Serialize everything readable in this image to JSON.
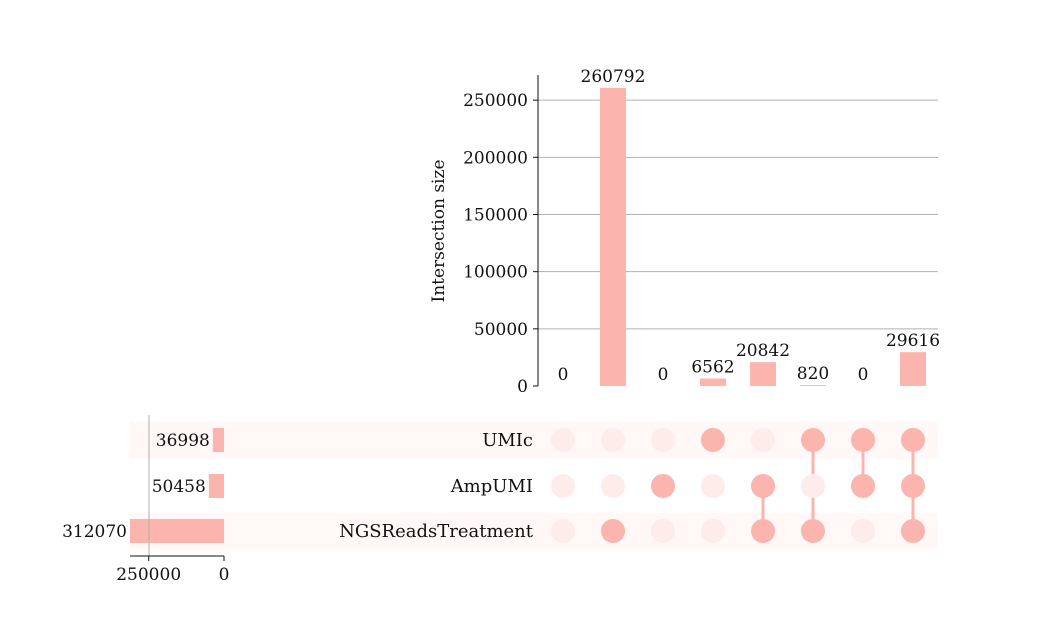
{
  "chart_data": {
    "type": "upset",
    "bar_color": "#fbb4ae",
    "dot_inactive_color": "#fdecea",
    "row_stripe_color": "#fff8f7",
    "grid_color": "#b0b0b0",
    "ylabel": "Intersection size",
    "ylim": [
      0,
      272000
    ],
    "yticks": [
      "0",
      "50000",
      "100000",
      "150000",
      "200000",
      "250000"
    ],
    "ytick_values": [
      0,
      50000,
      100000,
      150000,
      200000,
      250000
    ],
    "sets": [
      {
        "name": "UMIc",
        "size": 36998,
        "size_label": "36998"
      },
      {
        "name": "AmpUMI",
        "size": 50458,
        "size_label": "50458"
      },
      {
        "name": "NGSReadsTreatment",
        "size": 312070,
        "size_label": "312070"
      }
    ],
    "set_size_xlim": [
      0,
      312070
    ],
    "set_size_xticks": [
      "250000",
      "0"
    ],
    "set_size_xtick_values": [
      250000,
      0
    ],
    "intersections": [
      {
        "value": 0,
        "label": "0",
        "members": []
      },
      {
        "value": 260792,
        "label": "260792",
        "members": [
          "NGSReadsTreatment"
        ]
      },
      {
        "value": 0,
        "label": "0",
        "members": [
          "AmpUMI"
        ]
      },
      {
        "value": 6562,
        "label": "6562",
        "members": [
          "UMIc"
        ]
      },
      {
        "value": 20842,
        "label": "20842",
        "members": [
          "AmpUMI",
          "NGSReadsTreatment"
        ]
      },
      {
        "value": 820,
        "label": "820",
        "members": [
          "UMIc",
          "NGSReadsTreatment"
        ]
      },
      {
        "value": 0,
        "label": "0",
        "members": [
          "UMIc",
          "AmpUMI"
        ]
      },
      {
        "value": 29616,
        "label": "29616",
        "members": [
          "UMIc",
          "AmpUMI",
          "NGSReadsTreatment"
        ]
      }
    ]
  }
}
